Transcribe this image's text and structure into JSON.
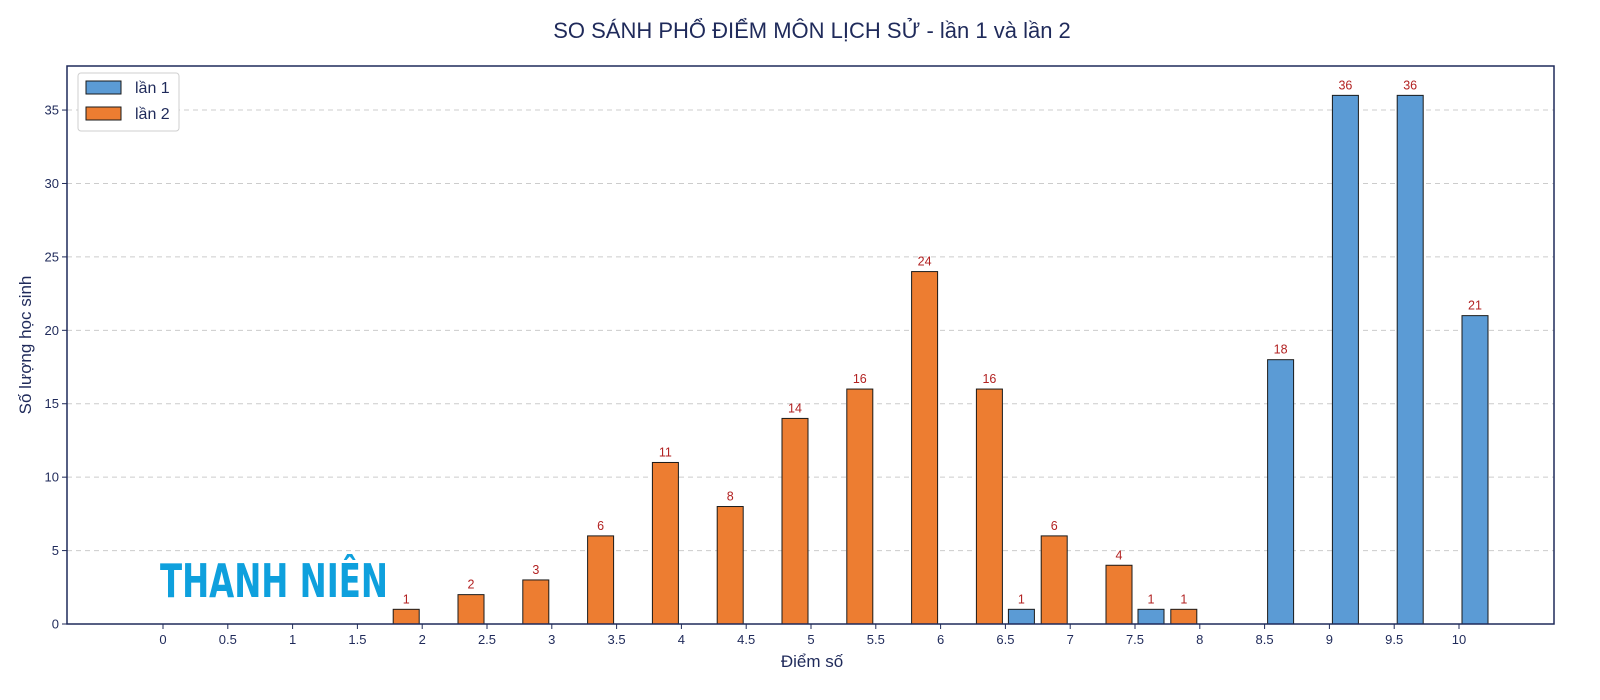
{
  "chart_data": {
    "type": "bar",
    "title": "SO SÁNH PHỔ ĐIỂM MÔN LỊCH SỬ - lần 1 và lần 2",
    "xlabel": "Điểm số",
    "ylabel": "Số lượng học sinh",
    "categories": [
      "0",
      "0.5",
      "1",
      "1.5",
      "2",
      "2.5",
      "3",
      "3.5",
      "4",
      "4.5",
      "5",
      "5.5",
      "6",
      "6.5",
      "7",
      "7.5",
      "8",
      "8.5",
      "9",
      "9.5",
      "10"
    ],
    "series": [
      {
        "name": "lần 1",
        "color": "#5b9bd5",
        "values": [
          0,
          0,
          0,
          0,
          0,
          0,
          0,
          0,
          0,
          0,
          0,
          0,
          0,
          1,
          0,
          1,
          0,
          18,
          36,
          36,
          21
        ]
      },
      {
        "name": "lần 2",
        "color": "#ed7d31",
        "values": [
          0,
          0,
          0,
          0,
          1,
          2,
          3,
          6,
          11,
          8,
          14,
          16,
          24,
          16,
          6,
          4,
          1,
          0,
          0,
          0,
          0
        ]
      }
    ],
    "ylim": [
      0,
      38
    ],
    "yticks": [
      0,
      5,
      10,
      15,
      20,
      25,
      30,
      35
    ],
    "grid": true,
    "legend_position": "top-left",
    "label_color": "#b22222"
  },
  "watermark": {
    "text": "THANH NIÊN",
    "color": "#0ea0dd"
  }
}
